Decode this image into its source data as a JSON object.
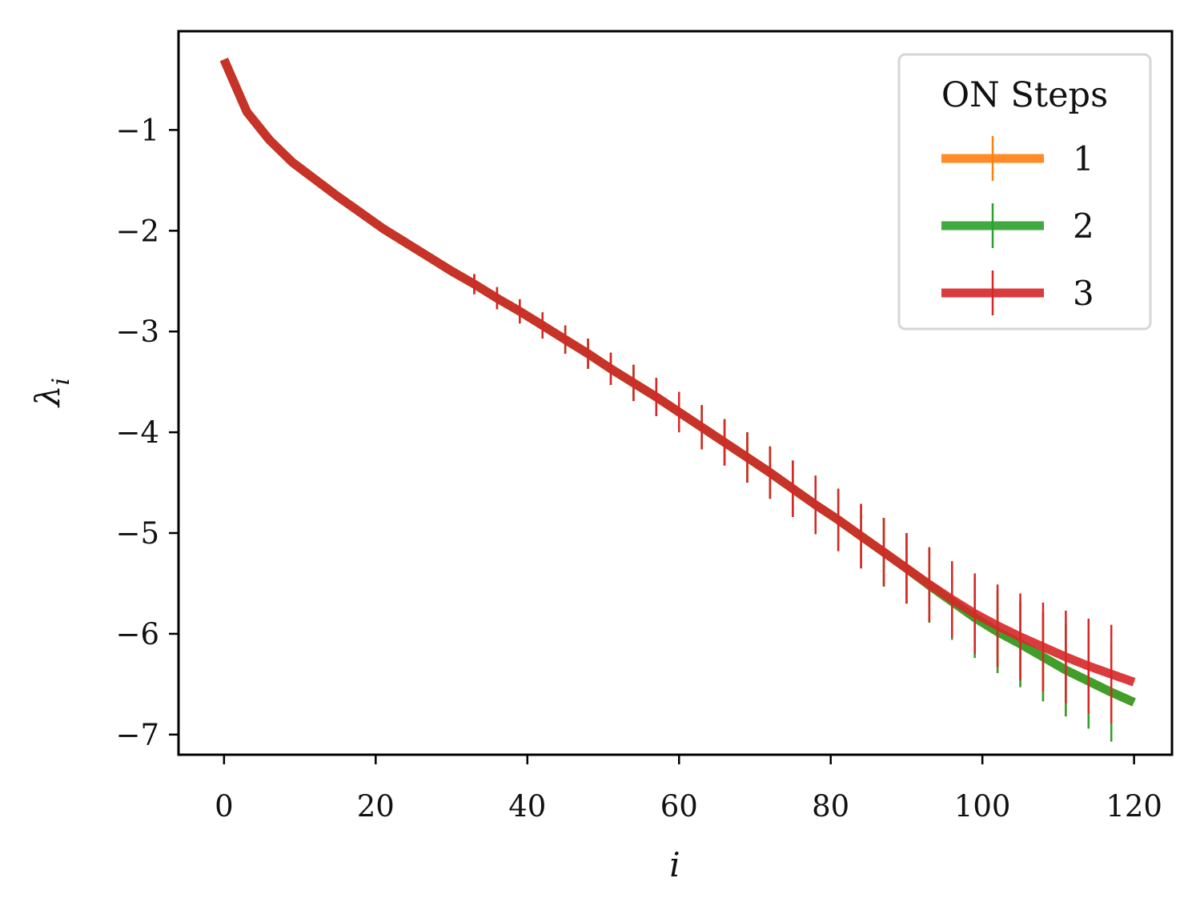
{
  "chart_data": {
    "type": "line",
    "xlabel": "i",
    "ylabel": "λ",
    "ylabel_sub": "i",
    "xlim": [
      -6,
      125
    ],
    "ylim": [
      -7.2,
      -0.02
    ],
    "xticks": [
      0,
      20,
      40,
      60,
      80,
      100,
      120
    ],
    "yticks": [
      -1,
      -2,
      -3,
      -4,
      -5,
      -6,
      -7
    ],
    "xtick_labels": [
      "0",
      "20",
      "40",
      "60",
      "80",
      "100",
      "120"
    ],
    "ytick_labels": [
      "−1",
      "−2",
      "−3",
      "−4",
      "−5",
      "−6",
      "−7"
    ],
    "legend": {
      "title": "ON Steps",
      "placement": "upper right"
    },
    "grid": false,
    "errorbar_every": 3,
    "errorbar_start": 33,
    "series": [
      {
        "name": "1",
        "color": "#ff7f0e",
        "x": [
          0,
          3,
          6,
          9,
          12,
          15,
          18,
          21,
          24,
          27,
          30,
          33,
          36,
          39,
          42,
          45,
          48,
          51,
          54,
          57,
          60,
          63,
          66,
          69,
          72,
          75,
          78,
          81,
          84,
          87,
          90,
          93,
          96,
          99,
          102,
          105,
          108,
          111,
          114,
          117,
          120
        ],
        "y": [
          -0.3,
          -0.82,
          -1.1,
          -1.32,
          -1.49,
          -1.66,
          -1.82,
          -1.98,
          -2.12,
          -2.26,
          -2.4,
          -2.53,
          -2.67,
          -2.8,
          -2.94,
          -3.08,
          -3.22,
          -3.37,
          -3.51,
          -3.65,
          -3.8,
          -3.95,
          -4.1,
          -4.25,
          -4.4,
          -4.56,
          -4.72,
          -4.87,
          -5.03,
          -5.19,
          -5.35,
          -5.52,
          -5.68,
          -5.84,
          -5.98,
          -6.1,
          -6.23,
          -6.36,
          -6.47,
          -6.58,
          -6.68
        ],
        "err": [
          0.05,
          0.05,
          0.05,
          0.05,
          0.05,
          0.05,
          0.05,
          0.05,
          0.05,
          0.05,
          0.05,
          0.1,
          0.11,
          0.12,
          0.13,
          0.14,
          0.15,
          0.16,
          0.18,
          0.19,
          0.2,
          0.22,
          0.23,
          0.25,
          0.26,
          0.28,
          0.29,
          0.31,
          0.32,
          0.34,
          0.35,
          0.37,
          0.38,
          0.4,
          0.41,
          0.43,
          0.44,
          0.46,
          0.47,
          0.49,
          0.05
        ]
      },
      {
        "name": "2",
        "color": "#2ca02c",
        "x": [
          0,
          3,
          6,
          9,
          12,
          15,
          18,
          21,
          24,
          27,
          30,
          33,
          36,
          39,
          42,
          45,
          48,
          51,
          54,
          57,
          60,
          63,
          66,
          69,
          72,
          75,
          78,
          81,
          84,
          87,
          90,
          93,
          96,
          99,
          102,
          105,
          108,
          111,
          114,
          117,
          120
        ],
        "y": [
          -0.3,
          -0.82,
          -1.1,
          -1.32,
          -1.49,
          -1.66,
          -1.82,
          -1.98,
          -2.12,
          -2.26,
          -2.4,
          -2.53,
          -2.67,
          -2.8,
          -2.94,
          -3.08,
          -3.22,
          -3.37,
          -3.51,
          -3.65,
          -3.8,
          -3.95,
          -4.1,
          -4.25,
          -4.4,
          -4.56,
          -4.72,
          -4.87,
          -5.03,
          -5.19,
          -5.35,
          -5.52,
          -5.68,
          -5.84,
          -5.98,
          -6.1,
          -6.23,
          -6.36,
          -6.47,
          -6.58,
          -6.68
        ],
        "err": [
          0.05,
          0.05,
          0.05,
          0.05,
          0.05,
          0.05,
          0.05,
          0.05,
          0.05,
          0.05,
          0.05,
          0.1,
          0.11,
          0.12,
          0.13,
          0.14,
          0.15,
          0.16,
          0.18,
          0.19,
          0.2,
          0.22,
          0.23,
          0.25,
          0.26,
          0.28,
          0.29,
          0.31,
          0.32,
          0.34,
          0.35,
          0.37,
          0.38,
          0.4,
          0.41,
          0.43,
          0.44,
          0.46,
          0.47,
          0.49,
          0.05
        ]
      },
      {
        "name": "3",
        "color": "#d62728",
        "x": [
          0,
          3,
          6,
          9,
          12,
          15,
          18,
          21,
          24,
          27,
          30,
          33,
          36,
          39,
          42,
          45,
          48,
          51,
          54,
          57,
          60,
          63,
          66,
          69,
          72,
          75,
          78,
          81,
          84,
          87,
          90,
          93,
          96,
          99,
          102,
          105,
          108,
          111,
          114,
          117,
          120
        ],
        "y": [
          -0.3,
          -0.82,
          -1.1,
          -1.32,
          -1.49,
          -1.66,
          -1.82,
          -1.98,
          -2.12,
          -2.26,
          -2.4,
          -2.53,
          -2.67,
          -2.8,
          -2.94,
          -3.08,
          -3.22,
          -3.37,
          -3.51,
          -3.65,
          -3.8,
          -3.95,
          -4.1,
          -4.25,
          -4.4,
          -4.56,
          -4.72,
          -4.87,
          -5.03,
          -5.19,
          -5.35,
          -5.51,
          -5.66,
          -5.8,
          -5.92,
          -6.03,
          -6.13,
          -6.23,
          -6.32,
          -6.4,
          -6.48
        ],
        "err": [
          0.05,
          0.05,
          0.05,
          0.05,
          0.05,
          0.05,
          0.05,
          0.05,
          0.05,
          0.05,
          0.05,
          0.1,
          0.11,
          0.12,
          0.13,
          0.14,
          0.15,
          0.16,
          0.18,
          0.19,
          0.2,
          0.22,
          0.23,
          0.25,
          0.26,
          0.28,
          0.29,
          0.31,
          0.32,
          0.34,
          0.35,
          0.37,
          0.38,
          0.4,
          0.41,
          0.43,
          0.44,
          0.46,
          0.47,
          0.49,
          0.05
        ]
      }
    ]
  }
}
